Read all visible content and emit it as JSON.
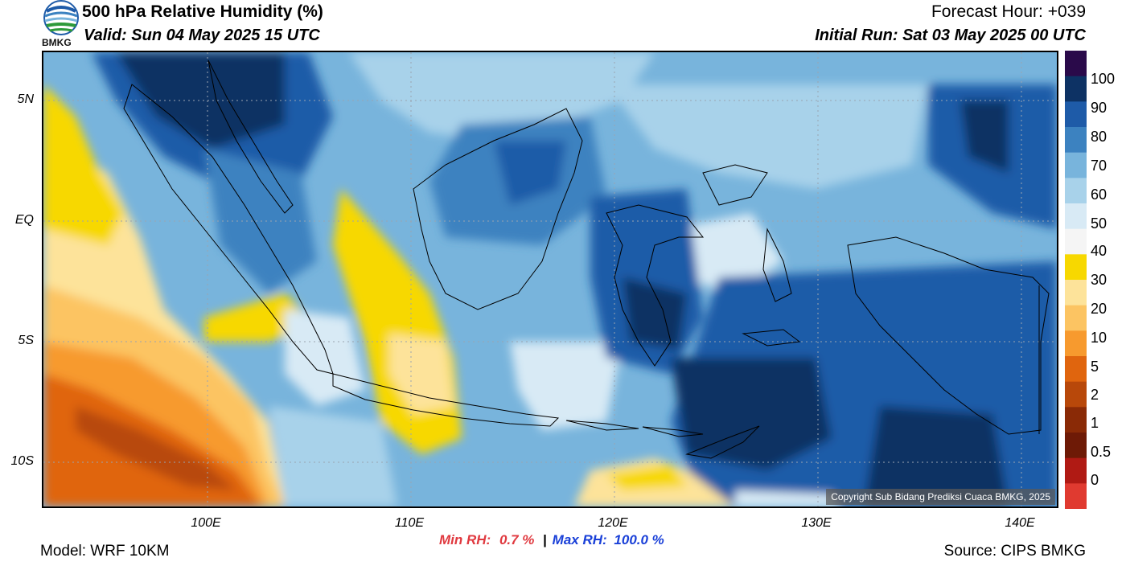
{
  "header": {
    "title": "500 hPa Relative Humidity (%)",
    "valid": "Valid: Sun 04 May 2025 15 UTC",
    "forecast_hour": "Forecast Hour: +039",
    "initial_run": "Initial Run: Sat 03 May 2025 00 UTC",
    "logo_text": "BMKG"
  },
  "map": {
    "lat_labels": [
      "5N",
      "EQ",
      "5S",
      "10S"
    ],
    "lon_labels": [
      "100E",
      "110E",
      "120E",
      "130E",
      "140E"
    ],
    "copyright": "Copyright Sub Bidang Prediksi Cuaca BMKG, 2025"
  },
  "colorbar": {
    "labels": [
      "100",
      "90",
      "80",
      "70",
      "60",
      "50",
      "40",
      "30",
      "20",
      "10",
      "5",
      "2",
      "1",
      "0.5",
      "0"
    ],
    "colors": [
      "#2a0a4a",
      "#0d3264",
      "#1e5ba8",
      "#3c82c0",
      "#78b4dc",
      "#a8d2ea",
      "#d8eaf5",
      "#f5f5f5",
      "#f7d800",
      "#fde39a",
      "#fcc462",
      "#f79a2e",
      "#e0650e",
      "#b8480a",
      "#8a2a06",
      "#6e1a06",
      "#b01a14",
      "#e03a30"
    ]
  },
  "footer": {
    "min_label": "Min RH:",
    "min_value": "0.7 %",
    "separator": "|",
    "max_label": "Max RH:",
    "max_value": "100.0 %",
    "model": "Model: WRF 10KM",
    "source": "Source: CIPS BMKG"
  }
}
